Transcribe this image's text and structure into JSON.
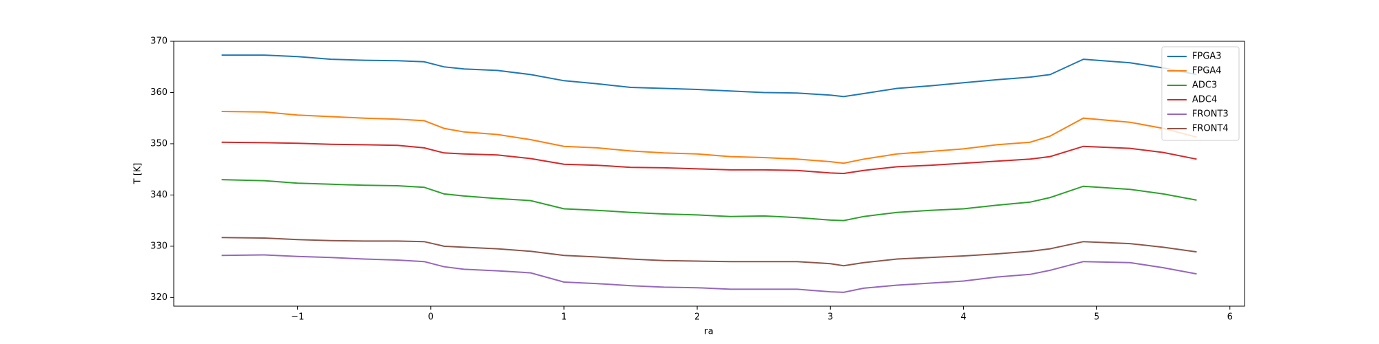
{
  "chart_data": {
    "type": "line",
    "xlabel": "ra",
    "ylabel": "T [K]",
    "x": [
      -1.57,
      -1.25,
      -1.0,
      -0.75,
      -0.5,
      -0.25,
      -0.05,
      0.1,
      0.25,
      0.5,
      0.75,
      1.0,
      1.25,
      1.5,
      1.75,
      2.0,
      2.25,
      2.5,
      2.75,
      3.0,
      3.1,
      3.25,
      3.5,
      3.75,
      4.0,
      4.25,
      4.5,
      4.65,
      4.9,
      5.25,
      5.5,
      5.75
    ],
    "series": [
      {
        "name": "FPGA3",
        "color": "#1f77b4",
        "values": [
          367.3,
          367.3,
          367,
          366.5,
          366.3,
          366.2,
          366,
          365,
          364.6,
          364.3,
          363.5,
          362.3,
          361.7,
          361,
          360.8,
          360.6,
          360.3,
          360,
          359.9,
          359.5,
          359.2,
          359.8,
          360.8,
          361.3,
          361.9,
          362.5,
          363,
          363.5,
          366.5,
          365.8,
          364.8,
          363.5
        ]
      },
      {
        "name": "FPGA4",
        "color": "#ff7f0e",
        "values": [
          356.3,
          356.2,
          355.6,
          355.3,
          355,
          354.8,
          354.5,
          353,
          352.3,
          351.8,
          350.8,
          349.5,
          349.2,
          348.6,
          348.2,
          348,
          347.5,
          347.3,
          347,
          346.5,
          346.2,
          347,
          348,
          348.5,
          349,
          349.8,
          350.3,
          351.5,
          355,
          354.2,
          353,
          351.3
        ]
      },
      {
        "name": "ADC3",
        "color": "#2ca02c",
        "values": [
          343,
          342.8,
          342.3,
          342.1,
          341.9,
          341.8,
          341.5,
          340.2,
          339.8,
          339.3,
          338.9,
          337.3,
          337,
          336.6,
          336.3,
          336.1,
          335.8,
          335.9,
          335.6,
          335.1,
          335,
          335.8,
          336.6,
          337,
          337.3,
          338,
          338.6,
          339.5,
          341.7,
          341.1,
          340.2,
          339
        ]
      },
      {
        "name": "ADC4",
        "color": "#d62728",
        "values": [
          350.3,
          350.2,
          350.1,
          349.9,
          349.8,
          349.7,
          349.2,
          348.2,
          348,
          347.8,
          347.1,
          346,
          345.8,
          345.4,
          345.3,
          345.1,
          344.9,
          344.9,
          344.8,
          344.3,
          344.2,
          344.8,
          345.5,
          345.8,
          346.2,
          346.6,
          347,
          347.5,
          349.5,
          349.1,
          348.3,
          347
        ]
      },
      {
        "name": "FRONT3",
        "color": "#9467bd",
        "values": [
          328.2,
          328.3,
          328,
          327.8,
          327.5,
          327.3,
          327,
          326,
          325.5,
          325.2,
          324.8,
          323,
          322.7,
          322.3,
          322,
          321.9,
          321.6,
          321.6,
          321.6,
          321.1,
          321,
          321.8,
          322.4,
          322.8,
          323.2,
          324,
          324.5,
          325.3,
          327,
          326.8,
          325.8,
          324.6
        ]
      },
      {
        "name": "FRONT4",
        "color": "#8c564b",
        "values": [
          331.7,
          331.6,
          331.3,
          331.1,
          331,
          331,
          330.9,
          330,
          329.8,
          329.5,
          329,
          328.2,
          327.9,
          327.5,
          327.2,
          327.1,
          327,
          327,
          327,
          326.6,
          326.2,
          326.8,
          327.5,
          327.8,
          328.1,
          328.5,
          329,
          329.5,
          330.9,
          330.5,
          329.8,
          328.9
        ]
      }
    ],
    "xlim": [
      -1.93,
      6.11
    ],
    "ylim": [
      318.3,
      370
    ],
    "xticks": [
      {
        "value": -1,
        "label": "−1"
      },
      0,
      1,
      2,
      3,
      4,
      5,
      6
    ],
    "yticks": [
      320,
      330,
      340,
      350,
      360,
      370
    ],
    "legend": "upper right"
  }
}
